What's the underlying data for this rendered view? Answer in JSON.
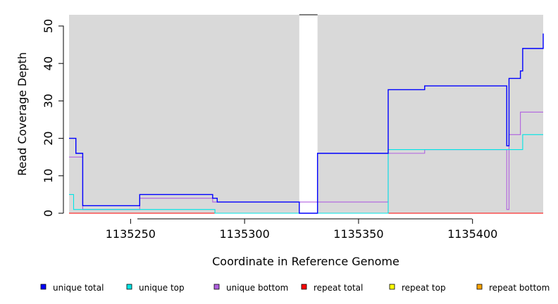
{
  "chart_data": {
    "type": "line",
    "title": "",
    "xlabel": "Coordinate in Reference Genome",
    "ylabel": "Read Coverage Depth",
    "xlim": [
      1135223,
      1135431
    ],
    "ylim": [
      0,
      53
    ],
    "x_ticks": [
      1135250,
      1135300,
      1135350,
      1135400
    ],
    "y_ticks": [
      0,
      10,
      20,
      30,
      40,
      50
    ],
    "gap_region": [
      1135324,
      1135332
    ],
    "colors": {
      "plot_background": "#d9d9d9",
      "gap": "#ffffff"
    },
    "legend_position": "bottom",
    "series": [
      {
        "name": "unique total",
        "color": "#0000ff",
        "x": [
          1135223,
          1135225,
          1135226,
          1135228,
          1135229,
          1135254,
          1135285,
          1135286,
          1135288,
          1135324,
          1135332,
          1135363,
          1135379,
          1135403,
          1135415,
          1135416,
          1135421,
          1135422,
          1135431
        ],
        "y": [
          20,
          20,
          16,
          16,
          2,
          5,
          5,
          4,
          3,
          0,
          16,
          33,
          34,
          34,
          18,
          36,
          38,
          44,
          48
        ]
      },
      {
        "name": "unique top",
        "color": "#00e5e5",
        "x": [
          1135223,
          1135225,
          1135254,
          1135287,
          1135363,
          1135422,
          1135431
        ],
        "y": [
          5,
          1,
          1,
          0,
          17,
          21,
          21
        ]
      },
      {
        "name": "unique bottom",
        "color": "#b060e0",
        "x": [
          1135223,
          1135228,
          1135229,
          1135254,
          1135286,
          1135363,
          1135379,
          1135403,
          1135415,
          1135416,
          1135421,
          1135431
        ],
        "y": [
          15,
          15,
          1,
          4,
          3,
          16,
          17,
          17,
          1,
          21,
          27,
          27
        ]
      },
      {
        "name": "repeat total",
        "color": "#ff0000",
        "x": [
          1135223,
          1135431
        ],
        "y": [
          0,
          0
        ]
      },
      {
        "name": "repeat top",
        "color": "#ffff00",
        "x": [
          1135223,
          1135431
        ],
        "y": [
          0,
          0
        ]
      },
      {
        "name": "repeat bottom",
        "color": "#ffa500",
        "x": [
          1135223,
          1135431
        ],
        "y": [
          0,
          0
        ]
      }
    ]
  }
}
